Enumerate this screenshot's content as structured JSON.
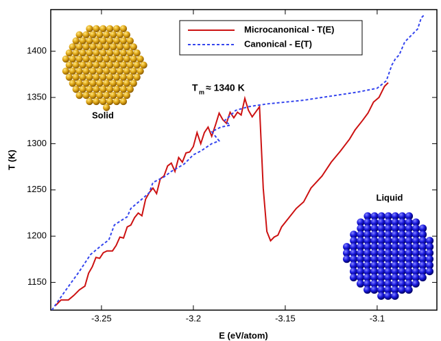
{
  "chart_data": {
    "type": "line",
    "xlabel": "E (eV/atom)",
    "ylabel": "T (K)",
    "xlim": [
      -3.2776,
      -3.0675
    ],
    "ylim": [
      1120,
      1445
    ],
    "xticks": [
      -3.25,
      -3.2,
      -3.15,
      -3.1
    ],
    "yticks": [
      1150,
      1200,
      1250,
      1300,
      1350,
      1400
    ],
    "legend": "upper center",
    "annotation": {
      "symbol": "T",
      "subscript": "m",
      "text": "≈ 1340 K"
    },
    "labels": [
      "Solid",
      "Liquid"
    ],
    "series": [
      {
        "name": "Microcanonical - T(E)",
        "color": "#cc1111",
        "dash": false,
        "x": [
          -3.275,
          -3.272,
          -3.268,
          -3.265,
          -3.262,
          -3.259,
          -3.257,
          -3.255,
          -3.253,
          -3.251,
          -3.249,
          -3.247,
          -3.244,
          -3.242,
          -3.24,
          -3.238,
          -3.236,
          -3.234,
          -3.232,
          -3.23,
          -3.228,
          -3.226,
          -3.224,
          -3.222,
          -3.22,
          -3.218,
          -3.216,
          -3.214,
          -3.212,
          -3.21,
          -3.208,
          -3.206,
          -3.204,
          -3.202,
          -3.2,
          -3.198,
          -3.196,
          -3.194,
          -3.192,
          -3.19,
          -3.188,
          -3.186,
          -3.184,
          -3.182,
          -3.18,
          -3.178,
          -3.176,
          -3.174,
          -3.172,
          -3.17,
          -3.168,
          -3.164,
          -3.162,
          -3.16,
          -3.158,
          -3.156,
          -3.154,
          -3.152,
          -3.148,
          -3.144,
          -3.14,
          -3.136,
          -3.13,
          -3.125,
          -3.12,
          -3.115,
          -3.112,
          -3.108,
          -3.105,
          -3.102,
          -3.099,
          -3.096,
          -3.094
        ],
        "values": [
          1125,
          1131,
          1131,
          1136,
          1142,
          1146,
          1160,
          1167,
          1177,
          1176,
          1182,
          1184,
          1184,
          1190,
          1199,
          1198,
          1210,
          1212,
          1220,
          1225,
          1222,
          1240,
          1247,
          1252,
          1246,
          1262,
          1265,
          1276,
          1279,
          1270,
          1285,
          1280,
          1290,
          1291,
          1297,
          1312,
          1300,
          1312,
          1318,
          1308,
          1320,
          1333,
          1326,
          1322,
          1334,
          1328,
          1334,
          1331,
          1349,
          1336,
          1329,
          1340,
          1252,
          1205,
          1195,
          1199,
          1201,
          1210,
          1220,
          1230,
          1237,
          1252,
          1265,
          1280,
          1292,
          1305,
          1315,
          1325,
          1333,
          1345,
          1350,
          1362,
          1366
        ]
      },
      {
        "name": "Canonical - E(T)",
        "color": "#3344ee",
        "dash": true,
        "x": [
          -3.277,
          -3.27,
          -3.262,
          -3.256,
          -3.25,
          -3.246,
          -3.243,
          -3.24,
          -3.236,
          -3.234,
          -3.228,
          -3.224,
          -3.222,
          -3.216,
          -3.212,
          -3.205,
          -3.2,
          -3.196,
          -3.19,
          -3.186,
          -3.19,
          -3.185,
          -3.18,
          -3.183,
          -3.18,
          -3.177,
          -3.17,
          -3.16,
          -3.15,
          -3.14,
          -3.13,
          -3.12,
          -3.11,
          -3.1,
          -3.095,
          -3.092,
          -3.09,
          -3.088,
          -3.085,
          -3.082,
          -3.078,
          -3.076,
          -3.074
        ],
        "values": [
          1120,
          1140,
          1162,
          1180,
          1190,
          1196,
          1212,
          1216,
          1221,
          1230,
          1240,
          1247,
          1258,
          1264,
          1270,
          1278,
          1288,
          1292,
          1300,
          1303,
          1313,
          1318,
          1320,
          1325,
          1330,
          1336,
          1340,
          1343,
          1345,
          1347,
          1350,
          1353,
          1356,
          1360,
          1368,
          1385,
          1392,
          1396,
          1410,
          1416,
          1424,
          1436,
          1440
        ]
      }
    ]
  }
}
